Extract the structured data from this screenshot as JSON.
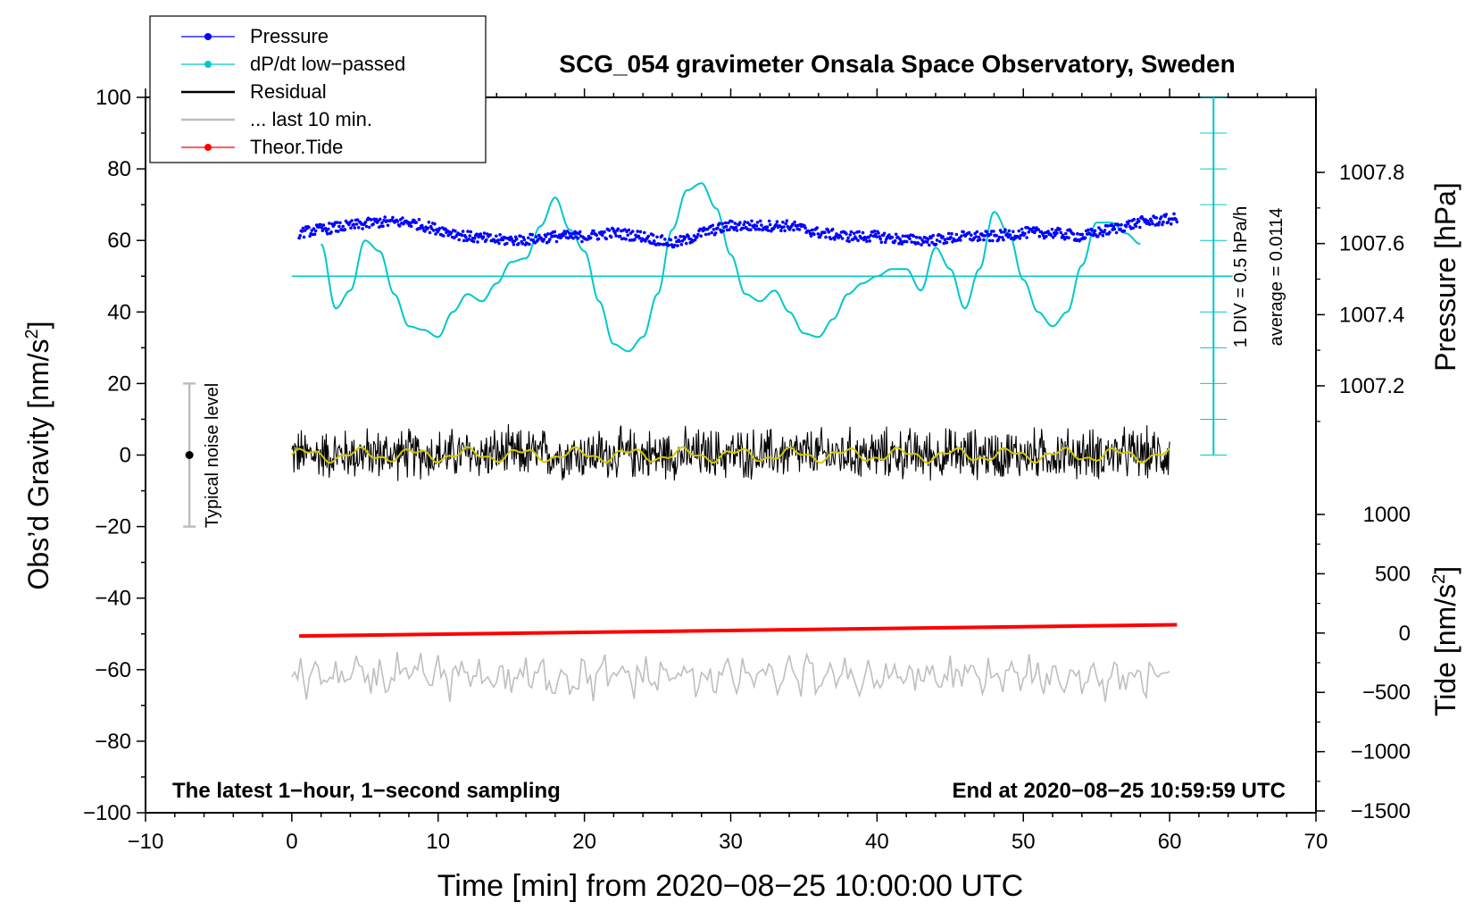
{
  "chart_data": {
    "type": "line",
    "title": "SCG_054 gravimeter Onsala Space Observatory, Sweden",
    "xlabel": "Time [min] from 2020−08−25 10:00:00 UTC",
    "ylabel_left": "Obs’d Gravity [nm/s",
    "ylabel_left_sup": "2",
    "ylabel_left_end": "]",
    "ylabel_right_pressure": "Pressure [hPa]",
    "ylabel_right_tide": "Tide [nm/s",
    "ylabel_right_tide_sup": "2",
    "ylabel_right_tide_end": "]",
    "xlim": [
      -10,
      70
    ],
    "ylim_left": [
      -100,
      100
    ],
    "x_ticks": [
      "−10",
      "0",
      "10",
      "20",
      "30",
      "40",
      "50",
      "60",
      "70"
    ],
    "y_ticks_left": [
      "100",
      "80",
      "60",
      "40",
      "20",
      "0",
      "−20",
      "−40",
      "−60",
      "−80",
      "−100"
    ],
    "pressure_ticks": [
      "1007.8",
      "1007.6",
      "1007.4",
      "1007.2"
    ],
    "pressure_tick_values": [
      1007.8,
      1007.6,
      1007.4,
      1007.2
    ],
    "tide_ticks": [
      "1000",
      "500",
      "0",
      "−500",
      "−1000",
      "−1500"
    ],
    "tide_tick_values": [
      1000,
      500,
      0,
      -500,
      -1000,
      -1500
    ],
    "legend": {
      "position": "top-left",
      "entries": [
        {
          "label": "Pressure",
          "color": "#0000ff",
          "marker": "dot"
        },
        {
          "label": "dP/dt low−passed",
          "color": "#00c8c8",
          "marker": "dot"
        },
        {
          "label": "Residual",
          "color": "#000000",
          "marker": "line"
        },
        {
          "label": "... last 10 min.",
          "color": "#bebebe",
          "marker": "line"
        },
        {
          "label": "Theor.Tide",
          "color": "#ff0000",
          "marker": "dot"
        }
      ]
    },
    "noise_bar": {
      "x": -7,
      "y": 0,
      "range": [
        -20,
        20
      ],
      "label": "Typical noise level"
    },
    "dpdt_scale": {
      "label_div": "1 DIV = 0.5 hPa/h",
      "label_avg": "average = 0.0114",
      "zero_line_y": 50
    },
    "footer_left": "The latest 1−hour, 1−second sampling",
    "footer_right": "End at 2020−08−25 10:59:59 UTC",
    "colors": {
      "pressure": "#0000ff",
      "dpdt": "#00c8c8",
      "residual": "#000000",
      "residual_smooth": "#d2c800",
      "last10": "#bebebe",
      "tide": "#ff0000"
    },
    "series": [
      {
        "name": "Pressure",
        "axis": "pressure",
        "x": [
          0.5,
          2,
          4,
          6,
          8,
          10,
          12,
          14,
          16,
          18,
          20,
          22,
          24,
          26,
          27,
          28,
          30,
          32,
          34,
          36,
          38,
          40,
          42,
          44,
          46,
          48,
          50,
          52,
          54,
          56,
          58,
          60.5
        ],
        "values": [
          1007.63,
          1007.64,
          1007.65,
          1007.66,
          1007.66,
          1007.64,
          1007.62,
          1007.61,
          1007.61,
          1007.62,
          1007.62,
          1007.63,
          1007.62,
          1007.6,
          1007.61,
          1007.63,
          1007.65,
          1007.65,
          1007.65,
          1007.63,
          1007.62,
          1007.62,
          1007.61,
          1007.61,
          1007.62,
          1007.62,
          1007.63,
          1007.63,
          1007.62,
          1007.64,
          1007.66,
          1007.67
        ]
      },
      {
        "name": "dP/dt low-passed",
        "axis": "left",
        "x": [
          2,
          3,
          4,
          5,
          6,
          7,
          8,
          9,
          10,
          11,
          12,
          13,
          14,
          15,
          16,
          17,
          18,
          19,
          20,
          21,
          22,
          23,
          24,
          25,
          26,
          27,
          28,
          29,
          30,
          31,
          32,
          33,
          34,
          35,
          36,
          37,
          38,
          39,
          40,
          41,
          42,
          43,
          44,
          45,
          46,
          47,
          48,
          49,
          50,
          51,
          52,
          53,
          54,
          55,
          56,
          57,
          58
        ],
        "values": [
          59,
          41,
          46,
          60,
          57,
          45,
          36,
          35,
          33,
          40,
          45,
          43,
          48,
          54,
          55,
          64,
          72,
          63,
          57,
          43,
          31,
          29,
          33,
          45,
          63,
          74,
          76,
          69,
          56,
          45,
          43,
          46,
          40,
          34,
          33,
          38,
          45,
          48,
          50,
          52,
          52,
          46,
          58,
          52,
          41,
          52,
          68,
          62,
          49,
          40,
          36,
          40,
          53,
          65,
          65,
          62,
          59
        ]
      },
      {
        "name": "Residual",
        "axis": "left",
        "x_range": [
          0,
          60
        ],
        "center": 0,
        "spread": [
          -8,
          9
        ]
      },
      {
        "name": "... last 10 min.",
        "axis": "left",
        "x_range": [
          0,
          60
        ],
        "center": -62,
        "spread": [
          -69,
          -54
        ]
      },
      {
        "name": "Theor.Tide",
        "axis": "tide",
        "x": [
          0.5,
          60.5
        ],
        "values": [
          -25,
          70
        ]
      }
    ]
  }
}
